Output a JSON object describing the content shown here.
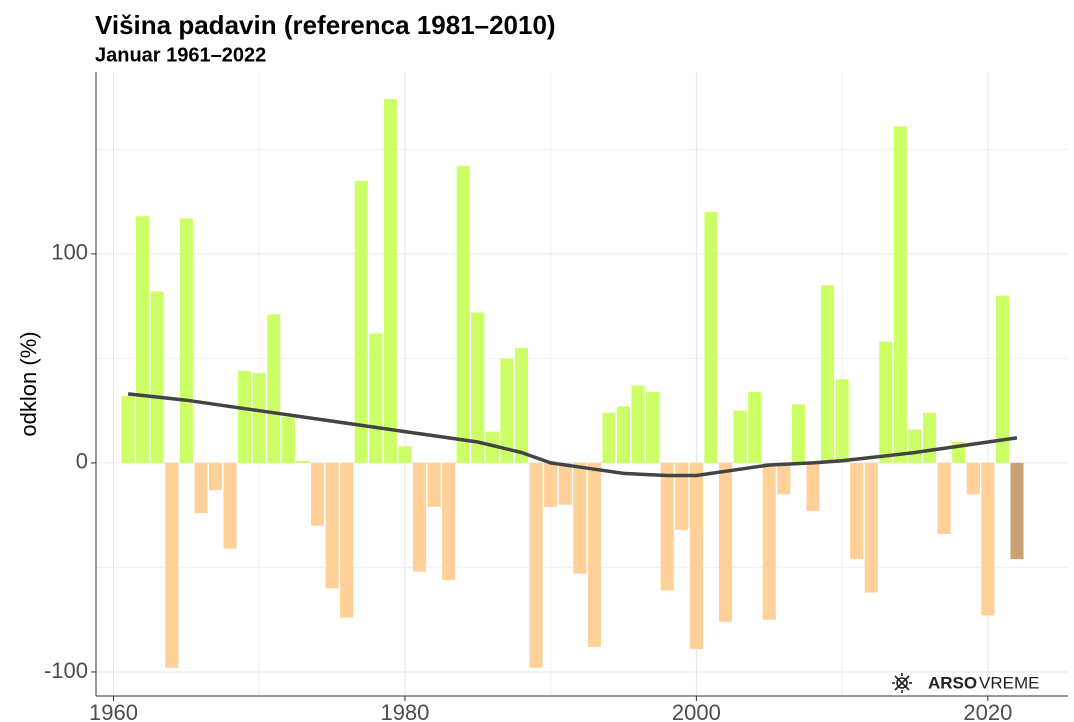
{
  "chart_data": {
    "type": "bar",
    "title": "Višina padavin (referenca 1981–2010)",
    "subtitle": "Januar 1961–2022",
    "y_label": "odklon (%)",
    "x": [
      1961,
      1962,
      1963,
      1964,
      1965,
      1966,
      1967,
      1968,
      1969,
      1970,
      1971,
      1972,
      1973,
      1974,
      1975,
      1976,
      1977,
      1978,
      1979,
      1980,
      1981,
      1982,
      1983,
      1984,
      1985,
      1986,
      1987,
      1988,
      1989,
      1990,
      1991,
      1992,
      1993,
      1994,
      1995,
      1996,
      1997,
      1998,
      1999,
      2000,
      2001,
      2002,
      2003,
      2004,
      2005,
      2006,
      2007,
      2008,
      2009,
      2010,
      2011,
      2012,
      2013,
      2014,
      2015,
      2016,
      2017,
      2018,
      2019,
      2020,
      2021,
      2022
    ],
    "values": [
      32,
      118,
      82,
      -98,
      117,
      -24,
      -13,
      -41,
      44,
      43,
      71,
      22,
      1,
      -30,
      -60,
      -74,
      135,
      62,
      174,
      8,
      -52,
      -21,
      -56,
      142,
      72,
      15,
      50,
      55,
      -98,
      -21,
      -20,
      -53,
      -88,
      24,
      27,
      37,
      34,
      -61,
      -32,
      -89,
      120,
      -76,
      25,
      34,
      -75,
      -15,
      28,
      -23,
      85,
      40,
      -46,
      -62,
      58,
      161,
      16,
      24,
      -34,
      10,
      -15,
      -73,
      80,
      -46
    ],
    "color_positive": "#ccff66",
    "color_negative": "#ffd199",
    "color_last": "#c9a175",
    "trend": {
      "color": "#444444",
      "x": [
        1961,
        1965,
        1970,
        1975,
        1980,
        1985,
        1988,
        1990,
        1993,
        1995,
        1998,
        2000,
        2003,
        2005,
        2008,
        2010,
        2015,
        2020,
        2022
      ],
      "values": [
        33,
        30,
        25,
        20,
        15,
        10,
        5,
        0,
        -3,
        -5,
        -6,
        -6,
        -3,
        -1,
        0,
        1,
        5,
        10,
        12
      ]
    },
    "xlim": [
      1958.8,
      2025.5
    ],
    "xticks": [
      1960,
      1980,
      2000,
      2020
    ],
    "minor_xticks": [
      1970,
      1990,
      2010
    ],
    "ylim": [
      -111.5,
      187
    ],
    "yticks": [
      -100,
      0,
      100
    ],
    "minor_yticks": [
      -50,
      50,
      150
    ],
    "grid": true,
    "logo": {
      "bold": "ARSO",
      "text": "VREME"
    }
  }
}
